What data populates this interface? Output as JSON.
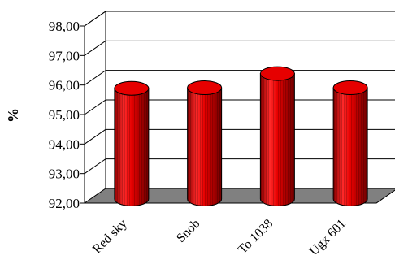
{
  "chart_data": {
    "type": "bar",
    "title": "",
    "xlabel": "",
    "ylabel": "%",
    "categories": [
      "Red sky",
      "Snob",
      "To 1038",
      "Ugx 601"
    ],
    "values": [
      95.75,
      95.77,
      96.25,
      95.77
    ],
    "ylim": [
      92.0,
      98.0
    ],
    "y_ticks": [
      "92,00",
      "93,00",
      "94,00",
      "95,00",
      "96,00",
      "97,00",
      "98,00"
    ],
    "grid": true,
    "legend": "none",
    "style": "3d-cylinder",
    "colors": {
      "bar": "#e60000",
      "bar_dark": "#7a0000",
      "floor": "#808080",
      "grid": "#000000"
    }
  }
}
